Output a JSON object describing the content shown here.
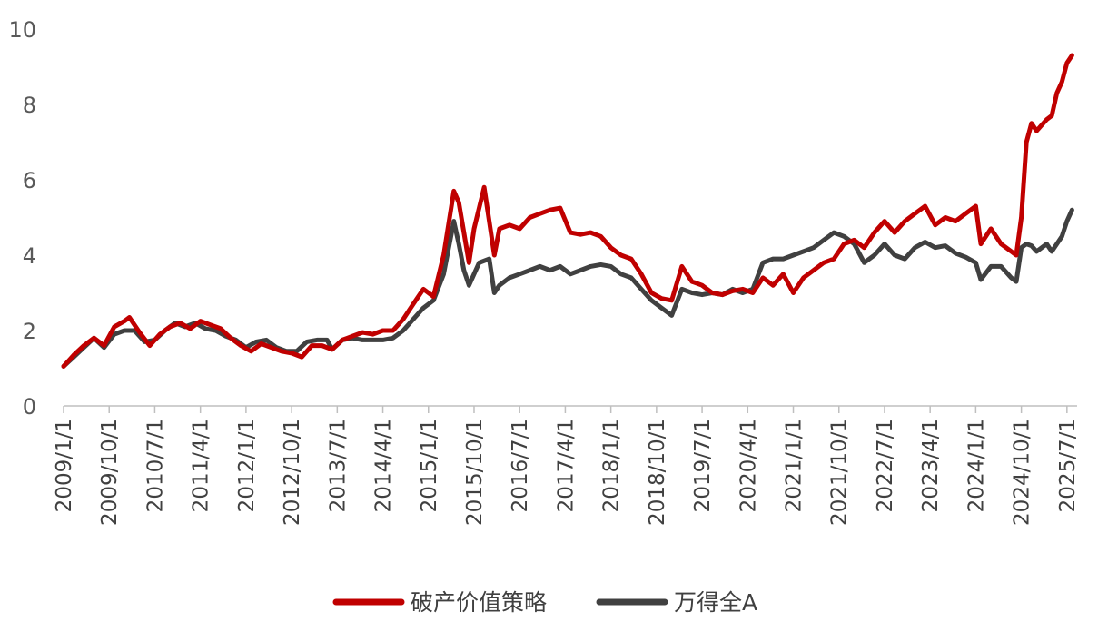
{
  "chart_data": {
    "type": "line",
    "y_axis": {
      "min": 0,
      "max": 10,
      "ticks": [
        "0",
        "2",
        "4",
        "6",
        "8",
        "10"
      ]
    },
    "x_axis": {
      "start": "2009/1/1",
      "end": "2025/9/1",
      "tick_labels": [
        "2009/1/1",
        "2009/10/1",
        "2010/7/1",
        "2011/4/1",
        "2012/1/1",
        "2012/10/1",
        "2013/7/1",
        "2014/4/1",
        "2015/1/1",
        "2015/10/1",
        "2016/7/1",
        "2017/4/1",
        "2018/1/1",
        "2018/10/1",
        "2019/7/1",
        "2020/4/1",
        "2021/1/1",
        "2021/10/1",
        "2022/7/1",
        "2023/4/1",
        "2024/1/1",
        "2024/10/1",
        "2025/7/1"
      ]
    },
    "grid": false,
    "legend_position": "bottom-center",
    "series": [
      {
        "name": "破产价值策略",
        "color": "#c00000",
        "points": [
          [
            "2009/1/1",
            1.05
          ],
          [
            "2009/3/1",
            1.35
          ],
          [
            "2009/5/1",
            1.6
          ],
          [
            "2009/7/1",
            1.8
          ],
          [
            "2009/9/1",
            1.6
          ],
          [
            "2009/11/1",
            2.1
          ],
          [
            "2010/1/1",
            2.25
          ],
          [
            "2010/2/1",
            2.35
          ],
          [
            "2010/4/1",
            1.95
          ],
          [
            "2010/6/1",
            1.6
          ],
          [
            "2010/8/1",
            1.9
          ],
          [
            "2010/10/1",
            2.1
          ],
          [
            "2010/12/1",
            2.2
          ],
          [
            "2011/2/1",
            2.05
          ],
          [
            "2011/4/1",
            2.25
          ],
          [
            "2011/6/1",
            2.15
          ],
          [
            "2011/8/1",
            2.05
          ],
          [
            "2011/10/1",
            1.8
          ],
          [
            "2011/12/1",
            1.6
          ],
          [
            "2012/2/1",
            1.45
          ],
          [
            "2012/4/1",
            1.65
          ],
          [
            "2012/6/1",
            1.55
          ],
          [
            "2012/8/1",
            1.45
          ],
          [
            "2012/10/1",
            1.4
          ],
          [
            "2012/12/1",
            1.3
          ],
          [
            "2013/2/1",
            1.6
          ],
          [
            "2013/4/1",
            1.6
          ],
          [
            "2013/6/1",
            1.5
          ],
          [
            "2013/8/1",
            1.75
          ],
          [
            "2013/10/1",
            1.85
          ],
          [
            "2013/12/1",
            1.95
          ],
          [
            "2014/2/1",
            1.9
          ],
          [
            "2014/4/1",
            2.0
          ],
          [
            "2014/6/1",
            2.0
          ],
          [
            "2014/8/1",
            2.3
          ],
          [
            "2014/10/1",
            2.7
          ],
          [
            "2014/12/1",
            3.1
          ],
          [
            "2015/2/1",
            2.9
          ],
          [
            "2015/4/1",
            4.0
          ],
          [
            "2015/6/1",
            5.7
          ],
          [
            "2015/7/1",
            5.4
          ],
          [
            "2015/8/1",
            4.6
          ],
          [
            "2015/9/1",
            3.8
          ],
          [
            "2015/10/1",
            4.7
          ],
          [
            "2015/12/1",
            5.8
          ],
          [
            "2016/2/1",
            4.0
          ],
          [
            "2016/3/1",
            4.7
          ],
          [
            "2016/5/1",
            4.8
          ],
          [
            "2016/7/1",
            4.7
          ],
          [
            "2016/9/1",
            5.0
          ],
          [
            "2016/11/1",
            5.1
          ],
          [
            "2017/1/1",
            5.2
          ],
          [
            "2017/3/1",
            5.25
          ],
          [
            "2017/5/1",
            4.6
          ],
          [
            "2017/7/1",
            4.55
          ],
          [
            "2017/9/1",
            4.6
          ],
          [
            "2017/11/1",
            4.5
          ],
          [
            "2018/1/1",
            4.2
          ],
          [
            "2018/3/1",
            4.0
          ],
          [
            "2018/5/1",
            3.9
          ],
          [
            "2018/7/1",
            3.5
          ],
          [
            "2018/9/1",
            3.0
          ],
          [
            "2018/11/1",
            2.85
          ],
          [
            "2019/1/1",
            2.8
          ],
          [
            "2019/3/1",
            3.7
          ],
          [
            "2019/5/1",
            3.3
          ],
          [
            "2019/7/1",
            3.2
          ],
          [
            "2019/9/1",
            3.0
          ],
          [
            "2019/11/1",
            2.95
          ],
          [
            "2020/1/1",
            3.05
          ],
          [
            "2020/3/1",
            3.1
          ],
          [
            "2020/5/1",
            3.0
          ],
          [
            "2020/7/1",
            3.4
          ],
          [
            "2020/9/1",
            3.2
          ],
          [
            "2020/11/1",
            3.5
          ],
          [
            "2021/1/1",
            3.0
          ],
          [
            "2021/3/1",
            3.4
          ],
          [
            "2021/5/1",
            3.6
          ],
          [
            "2021/7/1",
            3.8
          ],
          [
            "2021/9/1",
            3.9
          ],
          [
            "2021/11/1",
            4.3
          ],
          [
            "2022/1/1",
            4.4
          ],
          [
            "2022/3/1",
            4.2
          ],
          [
            "2022/5/1",
            4.6
          ],
          [
            "2022/7/1",
            4.9
          ],
          [
            "2022/9/1",
            4.6
          ],
          [
            "2022/11/1",
            4.9
          ],
          [
            "2023/1/1",
            5.1
          ],
          [
            "2023/3/1",
            5.3
          ],
          [
            "2023/5/1",
            4.8
          ],
          [
            "2023/7/1",
            5.0
          ],
          [
            "2023/9/1",
            4.9
          ],
          [
            "2023/11/1",
            5.1
          ],
          [
            "2024/1/1",
            5.3
          ],
          [
            "2024/2/1",
            4.3
          ],
          [
            "2024/4/1",
            4.7
          ],
          [
            "2024/6/1",
            4.3
          ],
          [
            "2024/8/1",
            4.1
          ],
          [
            "2024/9/1",
            4.0
          ],
          [
            "2024/10/1",
            5.0
          ],
          [
            "2024/11/1",
            7.0
          ],
          [
            "2024/12/1",
            7.5
          ],
          [
            "2025/1/1",
            7.3
          ],
          [
            "2025/3/1",
            7.6
          ],
          [
            "2025/4/1",
            7.7
          ],
          [
            "2025/5/1",
            8.3
          ],
          [
            "2025/6/1",
            8.6
          ],
          [
            "2025/7/1",
            9.1
          ],
          [
            "2025/8/1",
            9.3
          ]
        ]
      },
      {
        "name": "万得全A",
        "color": "#404040",
        "points": [
          [
            "2009/1/1",
            1.05
          ],
          [
            "2009/3/1",
            1.3
          ],
          [
            "2009/5/1",
            1.55
          ],
          [
            "2009/7/1",
            1.8
          ],
          [
            "2009/9/1",
            1.55
          ],
          [
            "2009/11/1",
            1.9
          ],
          [
            "2010/1/1",
            2.0
          ],
          [
            "2010/3/1",
            2.0
          ],
          [
            "2010/5/1",
            1.7
          ],
          [
            "2010/7/1",
            1.75
          ],
          [
            "2010/9/1",
            2.0
          ],
          [
            "2010/11/1",
            2.2
          ],
          [
            "2011/1/1",
            2.1
          ],
          [
            "2011/3/1",
            2.2
          ],
          [
            "2011/5/1",
            2.05
          ],
          [
            "2011/7/1",
            2.0
          ],
          [
            "2011/9/1",
            1.85
          ],
          [
            "2011/11/1",
            1.75
          ],
          [
            "2012/1/1",
            1.55
          ],
          [
            "2012/3/1",
            1.7
          ],
          [
            "2012/5/1",
            1.75
          ],
          [
            "2012/7/1",
            1.55
          ],
          [
            "2012/9/1",
            1.45
          ],
          [
            "2012/11/1",
            1.45
          ],
          [
            "2013/1/1",
            1.7
          ],
          [
            "2013/3/1",
            1.75
          ],
          [
            "2013/5/1",
            1.75
          ],
          [
            "2013/6/1",
            1.5
          ],
          [
            "2013/8/1",
            1.75
          ],
          [
            "2013/10/1",
            1.8
          ],
          [
            "2013/12/1",
            1.75
          ],
          [
            "2014/2/1",
            1.75
          ],
          [
            "2014/4/1",
            1.75
          ],
          [
            "2014/6/1",
            1.8
          ],
          [
            "2014/8/1",
            2.0
          ],
          [
            "2014/10/1",
            2.3
          ],
          [
            "2014/12/1",
            2.6
          ],
          [
            "2015/2/1",
            2.8
          ],
          [
            "2015/4/1",
            3.5
          ],
          [
            "2015/6/1",
            4.9
          ],
          [
            "2015/7/1",
            4.3
          ],
          [
            "2015/8/1",
            3.6
          ],
          [
            "2015/9/1",
            3.2
          ],
          [
            "2015/11/1",
            3.8
          ],
          [
            "2016/1/1",
            3.9
          ],
          [
            "2016/2/1",
            3.0
          ],
          [
            "2016/3/1",
            3.2
          ],
          [
            "2016/5/1",
            3.4
          ],
          [
            "2016/7/1",
            3.5
          ],
          [
            "2016/9/1",
            3.6
          ],
          [
            "2016/11/1",
            3.7
          ],
          [
            "2017/1/1",
            3.6
          ],
          [
            "2017/3/1",
            3.7
          ],
          [
            "2017/5/1",
            3.5
          ],
          [
            "2017/7/1",
            3.6
          ],
          [
            "2017/9/1",
            3.7
          ],
          [
            "2017/11/1",
            3.75
          ],
          [
            "2018/1/1",
            3.7
          ],
          [
            "2018/3/1",
            3.5
          ],
          [
            "2018/5/1",
            3.4
          ],
          [
            "2018/7/1",
            3.1
          ],
          [
            "2018/9/1",
            2.8
          ],
          [
            "2018/11/1",
            2.6
          ],
          [
            "2019/1/1",
            2.4
          ],
          [
            "2019/3/1",
            3.1
          ],
          [
            "2019/5/1",
            3.0
          ],
          [
            "2019/7/1",
            2.95
          ],
          [
            "2019/9/1",
            3.0
          ],
          [
            "2019/11/1",
            2.95
          ],
          [
            "2020/1/1",
            3.1
          ],
          [
            "2020/3/1",
            3.0
          ],
          [
            "2020/5/1",
            3.1
          ],
          [
            "2020/7/1",
            3.8
          ],
          [
            "2020/9/1",
            3.9
          ],
          [
            "2020/11/1",
            3.9
          ],
          [
            "2021/1/1",
            4.0
          ],
          [
            "2021/3/1",
            4.1
          ],
          [
            "2021/5/1",
            4.2
          ],
          [
            "2021/7/1",
            4.4
          ],
          [
            "2021/9/1",
            4.6
          ],
          [
            "2021/11/1",
            4.5
          ],
          [
            "2022/1/1",
            4.3
          ],
          [
            "2022/3/1",
            3.8
          ],
          [
            "2022/5/1",
            4.0
          ],
          [
            "2022/7/1",
            4.3
          ],
          [
            "2022/9/1",
            4.0
          ],
          [
            "2022/11/1",
            3.9
          ],
          [
            "2023/1/1",
            4.2
          ],
          [
            "2023/3/1",
            4.35
          ],
          [
            "2023/5/1",
            4.2
          ],
          [
            "2023/7/1",
            4.25
          ],
          [
            "2023/9/1",
            4.05
          ],
          [
            "2023/11/1",
            3.95
          ],
          [
            "2024/1/1",
            3.8
          ],
          [
            "2024/2/1",
            3.35
          ],
          [
            "2024/4/1",
            3.7
          ],
          [
            "2024/6/1",
            3.7
          ],
          [
            "2024/8/1",
            3.4
          ],
          [
            "2024/9/1",
            3.3
          ],
          [
            "2024/10/1",
            4.2
          ],
          [
            "2024/11/1",
            4.3
          ],
          [
            "2024/12/1",
            4.25
          ],
          [
            "2025/1/1",
            4.1
          ],
          [
            "2025/3/1",
            4.3
          ],
          [
            "2025/4/1",
            4.1
          ],
          [
            "2025/5/1",
            4.3
          ],
          [
            "2025/6/1",
            4.5
          ],
          [
            "2025/7/1",
            4.9
          ],
          [
            "2025/8/1",
            5.2
          ]
        ]
      }
    ]
  }
}
